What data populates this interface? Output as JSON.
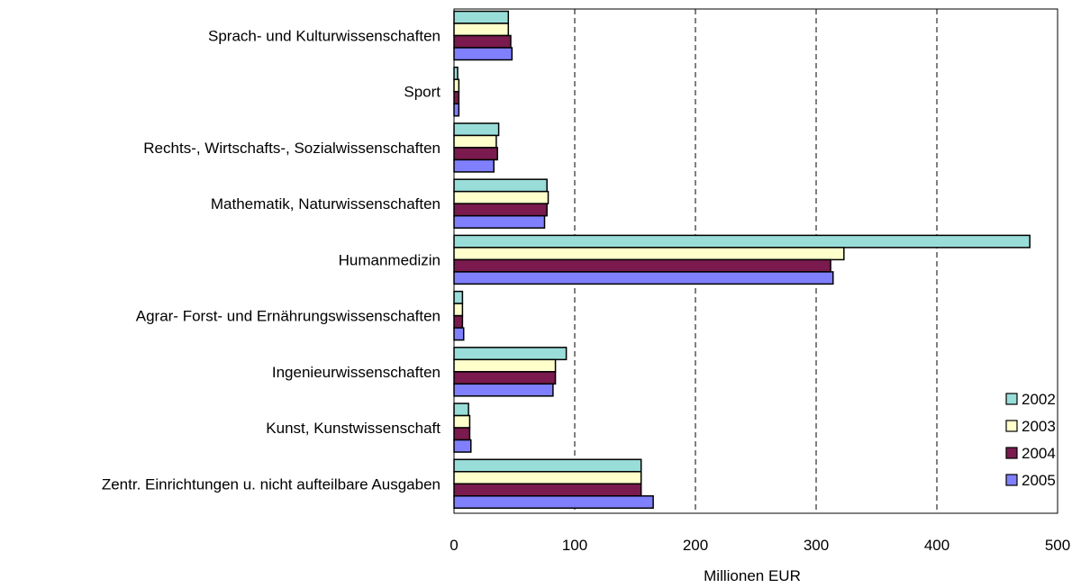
{
  "chart_data": {
    "type": "bar",
    "orientation": "horizontal",
    "categories": [
      "Sprach- und Kulturwissenschaften",
      "Sport",
      "Rechts-, Wirtschafts-, Sozialwissenschaften",
      "Mathematik, Naturwissenschaften",
      "Humanmedizin",
      "Agrar- Forst- und Ernährungswissenschaften",
      "Ingenieurwissenschaften",
      "Kunst, Kunstwissenschaft",
      "Zentr. Einrichtungen u. nicht aufteilbare Ausgaben"
    ],
    "series": [
      {
        "name": "2002",
        "color": "#99ddd9",
        "values": [
          45,
          3,
          37,
          77,
          477,
          7,
          93,
          12,
          155
        ]
      },
      {
        "name": "2003",
        "color": "#ffffcc",
        "values": [
          45,
          4,
          35,
          78,
          323,
          7,
          84,
          13,
          155
        ]
      },
      {
        "name": "2004",
        "color": "#7a1a4e",
        "values": [
          47,
          4,
          36,
          77,
          312,
          7,
          84,
          13,
          155
        ]
      },
      {
        "name": "2005",
        "color": "#8080ff",
        "values": [
          48,
          4,
          33,
          75,
          314,
          8,
          82,
          14,
          165
        ]
      }
    ],
    "xlabel": "Millionen EUR",
    "xlim": [
      0,
      500
    ],
    "xticks": [
      0,
      100,
      200,
      300,
      400,
      500
    ],
    "grid": "vertical dashed",
    "legend_position": "right"
  }
}
